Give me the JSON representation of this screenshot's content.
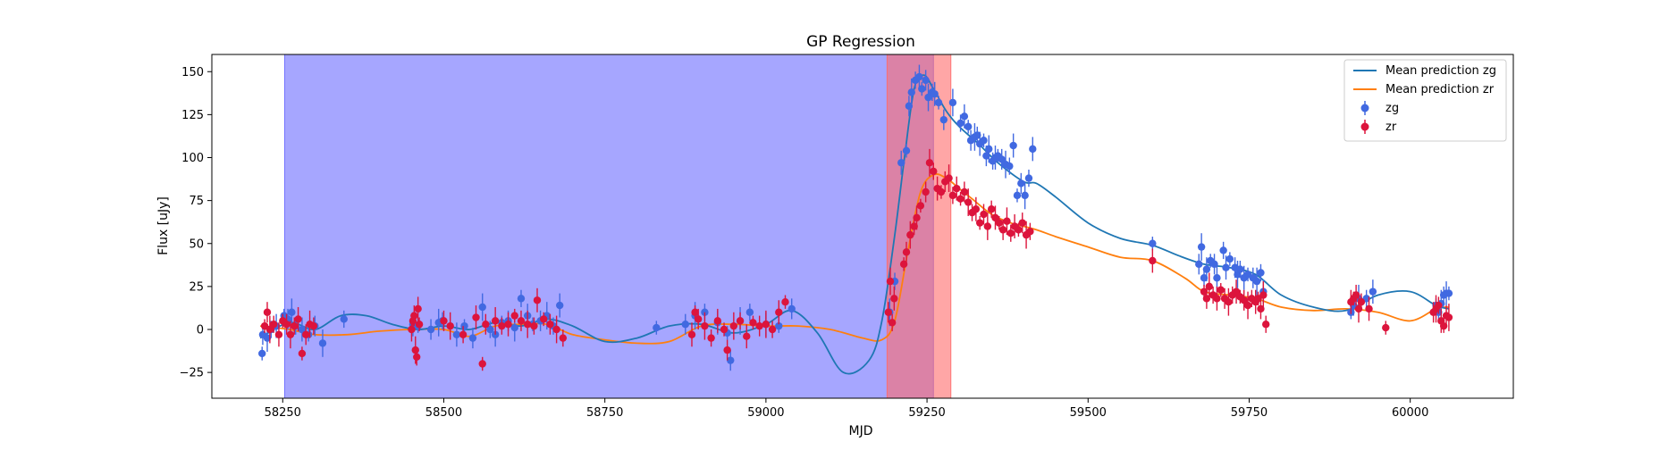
{
  "chart_data": {
    "type": "scatter",
    "title": "GP Regression",
    "xlabel": "MJD",
    "ylabel": "Flux [uJy]",
    "xlim": [
      58140,
      60160
    ],
    "ylim": [
      -40,
      160
    ],
    "x_ticks": [
      58250,
      58500,
      58750,
      59000,
      59250,
      59500,
      59750,
      60000
    ],
    "y_ticks": [
      -25,
      0,
      25,
      50,
      75,
      100,
      125,
      150
    ],
    "legend_position": "top-right",
    "legend": {
      "mean_zg": "Mean prediction zg",
      "mean_zr": "Mean prediction zr",
      "zg": "zg",
      "zr": "zr"
    },
    "colors": {
      "zg_points": "#4169e1",
      "zr_points": "#dc143c",
      "zg_line": "#1f77b4",
      "zr_line": "#ff7f0e",
      "span_blue": "#6a6aff",
      "span_red": "#ff6b6b"
    },
    "spans": [
      {
        "x0": 58253,
        "x1": 59260,
        "color": "blue"
      },
      {
        "x0": 59188,
        "x1": 59287,
        "color": "red"
      }
    ],
    "mean_prediction_zg": {
      "x": [
        58215,
        58260,
        58300,
        58340,
        58380,
        58420,
        58460,
        58500,
        58540,
        58580,
        58620,
        58660,
        58700,
        58750,
        58800,
        58850,
        58900,
        58950,
        59000,
        59040,
        59080,
        59120,
        59160,
        59180,
        59200,
        59215,
        59230,
        59245,
        59260,
        59280,
        59300,
        59330,
        59360,
        59400,
        59420,
        59450,
        59500,
        59550,
        59600,
        59640,
        59680,
        59720,
        59760,
        59800,
        59850,
        59900,
        59950,
        60000,
        60040,
        60060
      ],
      "y": [
        -5,
        4,
        0,
        8,
        8,
        3,
        0,
        2,
        0,
        4,
        2,
        6,
        2,
        -7,
        -5,
        2,
        3,
        -2,
        3,
        11,
        -2,
        -25,
        -18,
        5,
        55,
        100,
        140,
        148,
        140,
        127,
        118,
        108,
        97,
        86,
        85,
        77,
        62,
        53,
        49,
        43,
        38,
        36,
        32,
        20,
        13,
        11,
        20,
        22,
        14,
        12
      ]
    },
    "mean_prediction_zr": {
      "x": [
        58215,
        58260,
        58300,
        58350,
        58400,
        58450,
        58500,
        58540,
        58580,
        58620,
        58660,
        58700,
        58750,
        58800,
        58850,
        58900,
        58950,
        59000,
        59050,
        59100,
        59150,
        59180,
        59200,
        59220,
        59240,
        59260,
        59280,
        59300,
        59320,
        59350,
        59380,
        59400,
        59420,
        59450,
        59500,
        59550,
        59600,
        59650,
        59680,
        59720,
        59760,
        59800,
        59850,
        59900,
        59950,
        60000,
        60040,
        60060
      ],
      "y": [
        2,
        0,
        -3,
        -3,
        -1,
        0,
        0,
        -4,
        2,
        3,
        3,
        -3,
        -6,
        -8,
        -7,
        2,
        3,
        2,
        2,
        0,
        -5,
        -6,
        5,
        45,
        80,
        90,
        88,
        82,
        76,
        67,
        62,
        60,
        58,
        54,
        48,
        42,
        40,
        30,
        22,
        20,
        18,
        13,
        11,
        12,
        10,
        5,
        12,
        13
      ]
    },
    "zg": {
      "x": [
        58218,
        58219,
        58226,
        58232,
        58240,
        58252,
        58258,
        58264,
        58270,
        58280,
        58290,
        58300,
        58312,
        58345,
        58452,
        58460,
        58480,
        58492,
        58498,
        58520,
        58532,
        58545,
        58560,
        58572,
        58580,
        58590,
        58600,
        58610,
        58620,
        58630,
        58638,
        58650,
        58660,
        58670,
        58680,
        58830,
        58875,
        58890,
        58905,
        58925,
        58940,
        58945,
        58960,
        58975,
        59000,
        59020,
        59040,
        59192,
        59200,
        59210,
        59218,
        59222,
        59226,
        59232,
        59238,
        59242,
        59248,
        59252,
        59258,
        59262,
        59268,
        59276,
        59290,
        59302,
        59308,
        59314,
        59318,
        59324,
        59328,
        59332,
        59338,
        59342,
        59346,
        59352,
        59356,
        59360,
        59366,
        59372,
        59378,
        59384,
        59390,
        59396,
        59402,
        59408,
        59414,
        59600,
        59672,
        59676,
        59680,
        59684,
        59690,
        59696,
        59700,
        59710,
        59714,
        59720,
        59728,
        59732,
        59736,
        59742,
        59748,
        59756,
        59762,
        59768,
        59772,
        59908,
        59912,
        59920,
        59932,
        59942,
        60040,
        60044,
        60048,
        60052,
        60056,
        60060
      ],
      "y": [
        -14,
        -3,
        -5,
        0,
        2,
        8,
        6,
        10,
        2,
        0,
        -3,
        2,
        -8,
        6,
        3,
        2,
        0,
        4,
        5,
        -3,
        2,
        -5,
        13,
        0,
        -3,
        4,
        5,
        1,
        18,
        8,
        3,
        5,
        8,
        2,
        14,
        1,
        3,
        8,
        10,
        4,
        -2,
        -18,
        5,
        10,
        3,
        2,
        12,
        10,
        28,
        97,
        104,
        130,
        138,
        145,
        147,
        140,
        145,
        135,
        138,
        137,
        132,
        122,
        132,
        120,
        124,
        118,
        110,
        112,
        113,
        108,
        110,
        101,
        105,
        98,
        100,
        101,
        99,
        96,
        95,
        107,
        78,
        85,
        78,
        88,
        105,
        50,
        38,
        48,
        30,
        35,
        40,
        38,
        30,
        46,
        36,
        41,
        36,
        32,
        35,
        30,
        32,
        30,
        28,
        33,
        22,
        10,
        14,
        18,
        18,
        22,
        14,
        10,
        15,
        20,
        21,
        21
      ]
    },
    "zr": {
      "x": [
        58222,
        58226,
        58230,
        58236,
        58244,
        58250,
        58256,
        58262,
        58268,
        58274,
        58280,
        58286,
        58292,
        58298,
        58450,
        58452,
        58454,
        58456,
        58458,
        58460,
        58462,
        58500,
        58510,
        58530,
        58550,
        58560,
        58565,
        58580,
        58590,
        58600,
        58610,
        58620,
        58630,
        58640,
        58645,
        58655,
        58665,
        58675,
        58685,
        58885,
        58890,
        58895,
        58905,
        58915,
        58925,
        58935,
        58940,
        58950,
        58960,
        58970,
        58980,
        58990,
        59000,
        59010,
        59020,
        59030,
        59190,
        59193,
        59196,
        59199,
        59214,
        59218,
        59224,
        59230,
        59234,
        59240,
        59248,
        59254,
        59260,
        59266,
        59272,
        59278,
        59284,
        59290,
        59296,
        59302,
        59308,
        59314,
        59320,
        59326,
        59332,
        59338,
        59344,
        59350,
        59356,
        59362,
        59368,
        59374,
        59380,
        59386,
        59392,
        59398,
        59404,
        59410,
        59600,
        59680,
        59684,
        59688,
        59694,
        59700,
        59706,
        59712,
        59718,
        59724,
        59730,
        59736,
        59742,
        59748,
        59754,
        59760,
        59764,
        59768,
        59772,
        59776,
        59908,
        59912,
        59916,
        59920,
        59924,
        59936,
        59962,
        60036,
        60040,
        60044,
        60048,
        60052,
        60056,
        60060
      ],
      "y": [
        2,
        10,
        0,
        3,
        -3,
        5,
        3,
        -3,
        2,
        6,
        -14,
        -3,
        3,
        2,
        0,
        5,
        8,
        -12,
        -16,
        12,
        3,
        5,
        2,
        -3,
        7,
        -20,
        3,
        5,
        2,
        3,
        8,
        5,
        3,
        2,
        17,
        6,
        3,
        0,
        -5,
        -3,
        10,
        6,
        2,
        -5,
        5,
        0,
        -12,
        2,
        5,
        -4,
        4,
        2,
        3,
        0,
        10,
        16,
        10,
        28,
        4,
        18,
        38,
        45,
        55,
        60,
        65,
        72,
        80,
        97,
        92,
        82,
        80,
        86,
        88,
        78,
        82,
        76,
        80,
        74,
        68,
        70,
        62,
        67,
        60,
        70,
        65,
        62,
        58,
        63,
        56,
        60,
        58,
        62,
        55,
        57,
        40,
        22,
        18,
        25,
        20,
        18,
        23,
        18,
        16,
        20,
        22,
        19,
        17,
        14,
        18,
        16,
        18,
        12,
        20,
        3,
        16,
        18,
        20,
        12,
        16,
        12,
        1,
        10,
        12,
        14,
        5,
        2,
        8,
        7
      ]
    }
  }
}
